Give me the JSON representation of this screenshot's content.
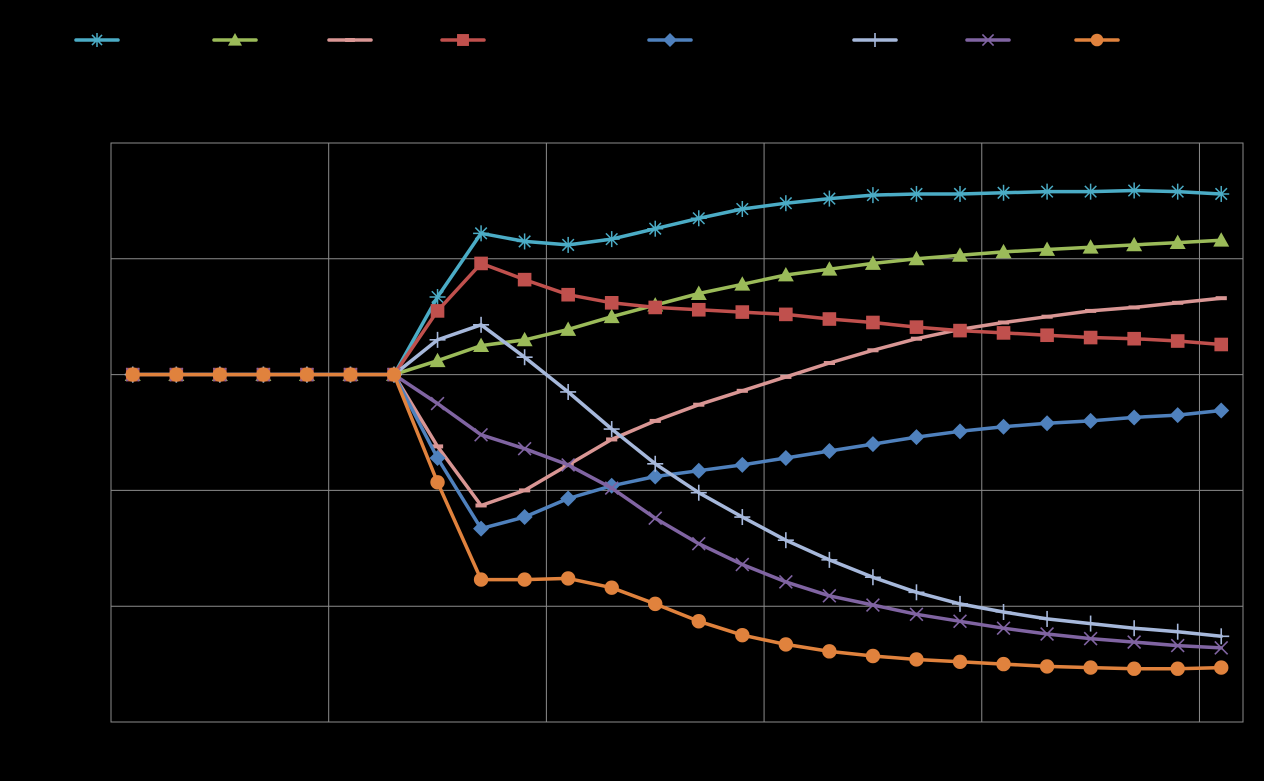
{
  "chart_data": {
    "type": "line",
    "title": "",
    "xlabel": "",
    "ylabel": "",
    "grid": true,
    "legend_position": "top",
    "x": [
      0,
      1,
      2,
      3,
      4,
      5,
      6,
      7,
      8,
      9,
      10,
      11,
      12,
      13,
      14,
      15,
      16,
      17,
      18,
      19,
      20,
      21,
      22,
      23,
      24,
      25
    ],
    "xlim": [
      -0.5,
      25.5
    ],
    "ylim": [
      -3,
      2
    ],
    "series": [
      {
        "marker": "asterisk",
        "color": "#4BACC6",
        "values": [
          0,
          0,
          0,
          0,
          0,
          0,
          0,
          0.67,
          1.22,
          1.15,
          1.12,
          1.17,
          1.26,
          1.35,
          1.43,
          1.48,
          1.52,
          1.55,
          1.56,
          1.56,
          1.57,
          1.58,
          1.58,
          1.59,
          1.58,
          1.56
        ]
      },
      {
        "marker": "triangle",
        "color": "#9BBB59",
        "values": [
          0,
          0,
          0,
          0,
          0,
          0,
          0,
          0.12,
          0.25,
          0.3,
          0.39,
          0.5,
          0.6,
          0.7,
          0.78,
          0.86,
          0.91,
          0.96,
          1.0,
          1.03,
          1.06,
          1.08,
          1.1,
          1.12,
          1.14,
          1.16
        ]
      },
      {
        "marker": "dash",
        "color": "#D99694",
        "values": [
          0,
          0,
          0,
          0,
          0,
          0,
          0,
          -0.62,
          -1.13,
          -1.0,
          -0.78,
          -0.56,
          -0.4,
          -0.26,
          -0.14,
          -0.02,
          0.1,
          0.21,
          0.31,
          0.39,
          0.45,
          0.5,
          0.55,
          0.58,
          0.62,
          0.66
        ]
      },
      {
        "marker": "square",
        "color": "#C0504D",
        "values": [
          0,
          0,
          0,
          0,
          0,
          0,
          0,
          0.55,
          0.96,
          0.82,
          0.69,
          0.62,
          0.58,
          0.56,
          0.54,
          0.52,
          0.48,
          0.45,
          0.41,
          0.38,
          0.36,
          0.34,
          0.32,
          0.31,
          0.29,
          0.26
        ]
      },
      {
        "marker": "diamond",
        "color": "#4F81BD",
        "values": [
          0,
          0,
          0,
          0,
          0,
          0,
          0,
          -0.72,
          -1.33,
          -1.23,
          -1.07,
          -0.96,
          -0.88,
          -0.83,
          -0.78,
          -0.72,
          -0.66,
          -0.6,
          -0.54,
          -0.49,
          -0.45,
          -0.42,
          -0.4,
          -0.37,
          -0.35,
          -0.31
        ]
      },
      {
        "marker": "plus",
        "color": "#A6B8DB",
        "values": [
          0,
          0,
          0,
          0,
          0,
          0,
          0,
          0.3,
          0.43,
          0.15,
          -0.15,
          -0.47,
          -0.77,
          -1.02,
          -1.23,
          -1.43,
          -1.6,
          -1.75,
          -1.88,
          -1.98,
          -2.05,
          -2.11,
          -2.15,
          -2.19,
          -2.22,
          -2.26
        ]
      },
      {
        "marker": "x",
        "color": "#8064A2",
        "values": [
          0,
          0,
          0,
          0,
          0,
          0,
          0,
          -0.25,
          -0.52,
          -0.64,
          -0.78,
          -0.98,
          -1.24,
          -1.46,
          -1.64,
          -1.79,
          -1.91,
          -1.99,
          -2.07,
          -2.13,
          -2.19,
          -2.24,
          -2.28,
          -2.31,
          -2.34,
          -2.36
        ]
      },
      {
        "marker": "circle",
        "color": "#E0823D",
        "values": [
          0,
          0,
          0,
          0,
          0,
          0,
          0,
          -0.93,
          -1.77,
          -1.77,
          -1.76,
          -1.84,
          -1.98,
          -2.13,
          -2.25,
          -2.33,
          -2.39,
          -2.43,
          -2.46,
          -2.48,
          -2.5,
          -2.52,
          -2.53,
          -2.54,
          -2.54,
          -2.53
        ]
      }
    ]
  }
}
